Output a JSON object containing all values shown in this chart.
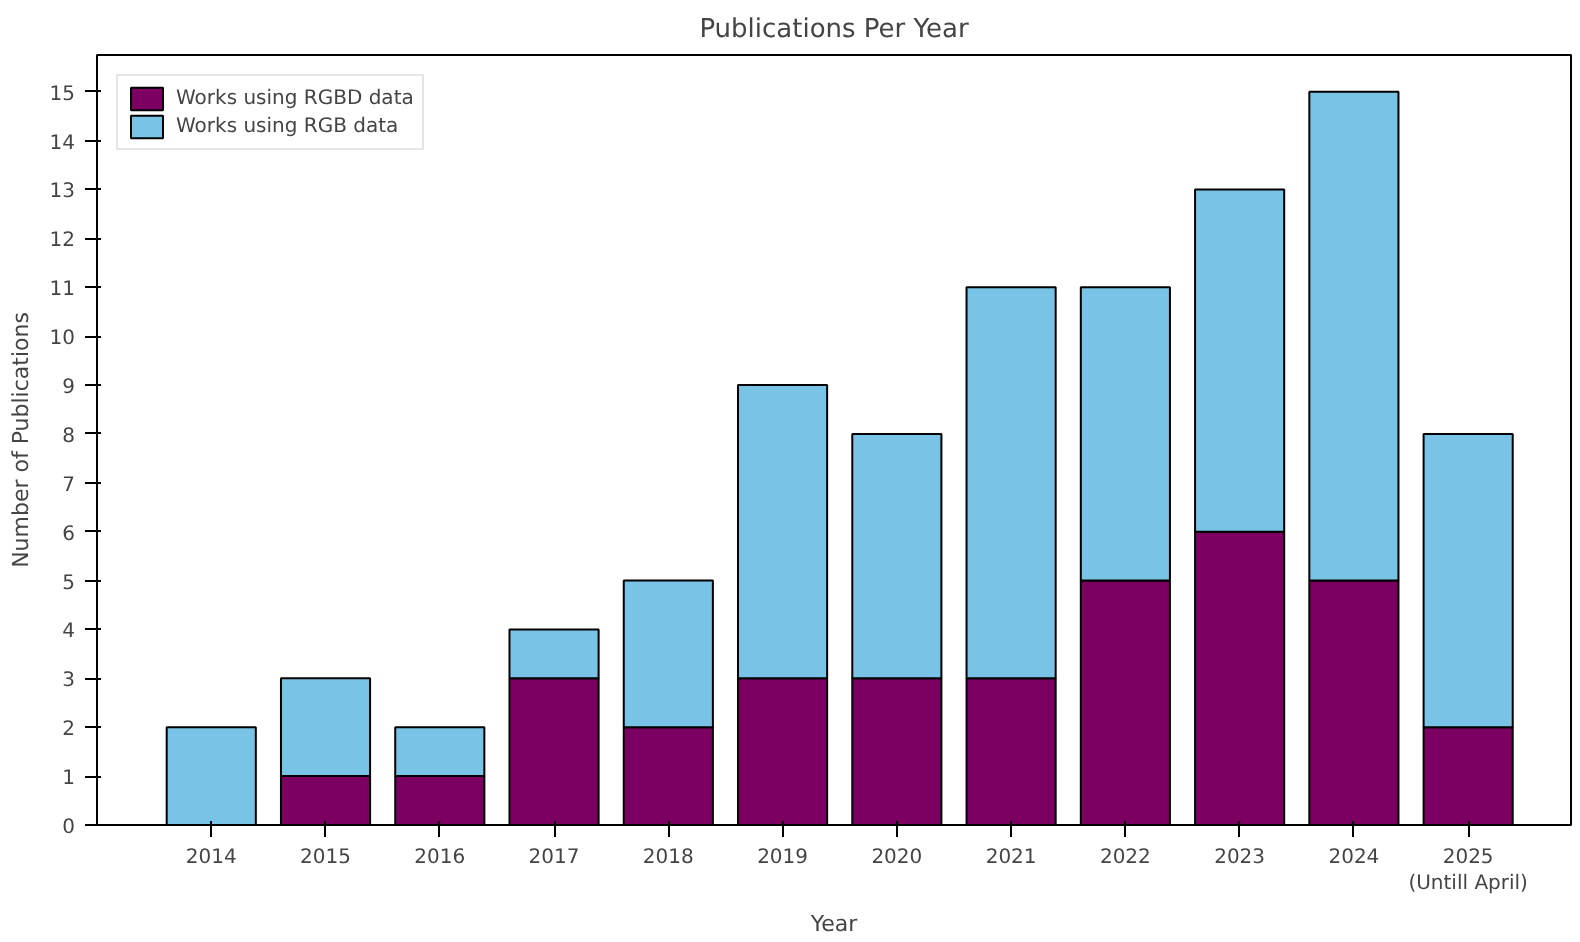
{
  "chart_data": {
    "type": "bar",
    "title": "Publications Per Year",
    "xlabel": "Year",
    "ylabel": "Number of Publications",
    "categories": [
      "2014",
      "2015",
      "2016",
      "2017",
      "2018",
      "2019",
      "2020",
      "2021",
      "2022",
      "2023",
      "2024",
      "2025\n(Untill April)"
    ],
    "stacked": true,
    "series": [
      {
        "name": "Works using RGBD data",
        "color": "#7b0061",
        "values": [
          0,
          1,
          1,
          3,
          2,
          3,
          3,
          3,
          5,
          6,
          5,
          2
        ]
      },
      {
        "name": "Works using RGB data",
        "color": "#79c3e6",
        "values": [
          2,
          2,
          1,
          1,
          3,
          6,
          5,
          8,
          6,
          7,
          10,
          6
        ]
      }
    ],
    "ylim": [
      0,
      15.75
    ],
    "yticks": [
      0,
      1,
      2,
      3,
      4,
      5,
      6,
      7,
      8,
      9,
      10,
      11,
      12,
      13,
      14,
      15
    ],
    "grid": false,
    "legend": "top left"
  }
}
